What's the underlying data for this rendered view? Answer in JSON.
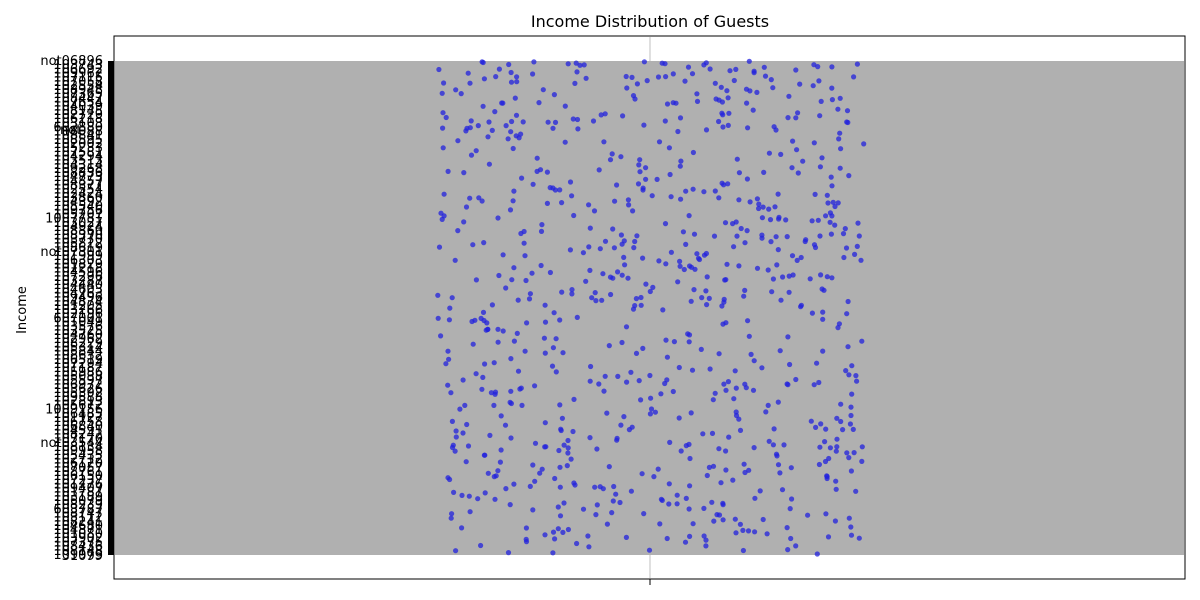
{
  "chart_data": {
    "type": "scatter",
    "title": "Income Distribution of Guests",
    "xlabel": "",
    "ylabel": "Income",
    "visible_ytick_labels": [
      "not",
      "1",
      "1",
      "1",
      "1",
      "1",
      "1",
      "1",
      "1",
      "1",
      "1",
      "1",
      "1",
      "1",
      "1",
      "1",
      "6",
      "1",
      "1",
      "1",
      "1",
      "1",
      "1",
      "1",
      "1",
      "1",
      "1",
      "1",
      "1",
      "1",
      "1",
      "1",
      "1",
      "1",
      "1",
      "1",
      "1",
      "1",
      "10",
      "1",
      "1",
      "1",
      "1",
      "1",
      "1",
      "1"
    ],
    "bottom_ytick_label": "31099",
    "n_points": 800,
    "point_color": "#2222dd",
    "band_color": "#b0b0b0",
    "grid": true,
    "legend": "none",
    "note": "y axis is categorical (income values as strings); category tick labels overlap and are illegible"
  }
}
